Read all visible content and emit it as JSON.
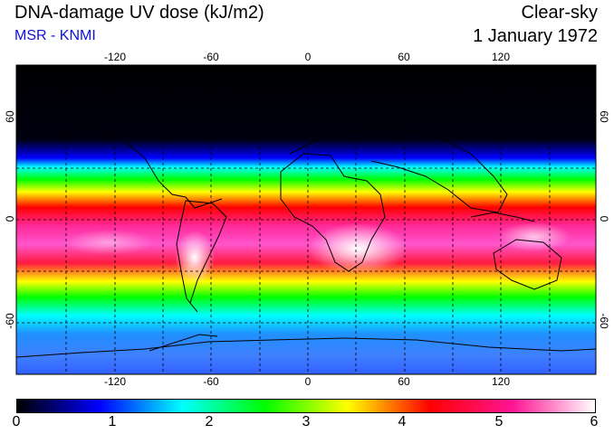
{
  "header": {
    "title": "DNA-damage UV dose (kJ/m2)",
    "subtitle": "MSR - KNMI",
    "condition": "Clear-sky",
    "date": "1 January 1972"
  },
  "map": {
    "lon_ticks": [
      "-120",
      "-60",
      "0",
      "60",
      "120"
    ],
    "lat_ticks": [
      "60",
      "0",
      "-60"
    ]
  },
  "colorbar": {
    "ticks": [
      "0",
      "1",
      "2",
      "3",
      "4",
      "5",
      "6"
    ],
    "colors": [
      "#000000",
      "#0000ff",
      "#00ffff",
      "#00ff00",
      "#ffff00",
      "#ff0000",
      "#ff1493",
      "#ffffff"
    ]
  }
}
